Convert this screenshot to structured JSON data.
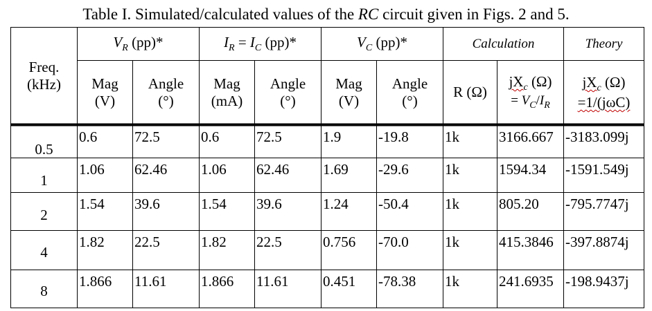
{
  "caption": {
    "prefix": "Table I. Simulated/calculated values of the ",
    "rc": "RC",
    "suffix": " circuit given in Figs. 2 and 5."
  },
  "header": {
    "freq": "Freq.",
    "freq_unit": "(kHz)",
    "vr_var": "V",
    "vr_sub": "R",
    "vr_rest": " (pp)*",
    "ir_var1": "I",
    "ir_sub1": "R",
    "ir_eq": " = ",
    "ir_var2": "I",
    "ir_sub2": "C",
    "ir_rest": " (pp)*",
    "vc_var": "V",
    "vc_sub": "C",
    "vc_rest": " (pp)*",
    "calculation": "Calculation",
    "theory": "Theory",
    "mag": "Mag",
    "angle": "Angle",
    "unit_v": "(V)",
    "unit_ma": "(mA)",
    "unit_deg": "(°)",
    "r_label": "R (Ω)",
    "jxc_calc_j": "jX",
    "jxc_calc_sub": "c",
    "jxc_calc_unit": " (Ω)",
    "jxc_calc_formula_eq": "= ",
    "jxc_calc_formula_v": "V",
    "jxc_calc_formula_vsub": "C",
    "jxc_calc_formula_slash": "/",
    "jxc_calc_formula_i": "I",
    "jxc_calc_formula_isub": "R",
    "jxc_theory_j": "jX",
    "jxc_theory_sub": "c",
    "jxc_theory_unit": " (Ω)",
    "jxc_theory_formula": "=1/(jωC)"
  },
  "rows": [
    {
      "freq": "0.5",
      "vr_mag": "0.6",
      "vr_angle": "72.5",
      "i_mag": "0.6",
      "i_angle": "72.5",
      "vc_mag": "1.9",
      "vc_angle": "-19.8",
      "r": "1k",
      "xc_calc": "3166.667",
      "xc_theory": "-3183.099j"
    },
    {
      "freq": "1",
      "vr_mag": "1.06",
      "vr_angle": "62.46",
      "i_mag": "1.06",
      "i_angle": "62.46",
      "vc_mag": "1.69",
      "vc_angle": "-29.6",
      "r": "1k",
      "xc_calc": "1594.34",
      "xc_theory": "-1591.549j"
    },
    {
      "freq": "2",
      "vr_mag": "1.54",
      "vr_angle": "39.6",
      "i_mag": "1.54",
      "i_angle": "39.6",
      "vc_mag": "1.24",
      "vc_angle": "-50.4",
      "r": "1k",
      "xc_calc": "805.20",
      "xc_theory": "-795.7747j"
    },
    {
      "freq": "4",
      "vr_mag": "1.82",
      "vr_angle": "22.5",
      "i_mag": "1.82",
      "i_angle": "22.5",
      "vc_mag": "0.756",
      "vc_angle": "-70.0",
      "r": "1k",
      "xc_calc": "415.3846",
      "xc_theory": "-397.8874j"
    },
    {
      "freq": "8",
      "vr_mag": "1.866",
      "vr_angle": "11.61",
      "i_mag": "1.866",
      "i_angle": "11.61",
      "vc_mag": "0.451",
      "vc_angle": "-78.38",
      "r": "1k",
      "xc_calc": "241.6935",
      "xc_theory": "-198.9437j"
    }
  ]
}
